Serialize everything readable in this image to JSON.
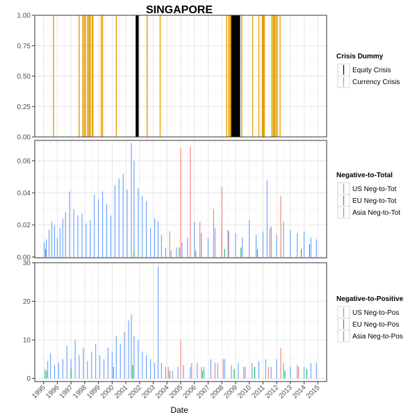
{
  "chart_data": {
    "title": "SINGAPORE",
    "xlabel": "Date",
    "x_ticks": [
      "1995",
      "1996",
      "1997",
      "1998",
      "1999",
      "2000",
      "2001",
      "2002",
      "2003",
      "2004",
      "2005",
      "2006",
      "2007",
      "2008",
      "2009",
      "2010",
      "2011",
      "2012",
      "2013",
      "2014",
      "2015"
    ],
    "xlim": [
      1995,
      2015
    ],
    "panels": [
      {
        "type": "bar",
        "ylim": [
          0,
          1
        ],
        "y_ticks": [
          "0.00",
          "0.25",
          "0.50",
          "0.75",
          "1.00"
        ],
        "legend": {
          "title": "Crisis Dummy",
          "entries": [
            {
              "label": "Equity Crisis",
              "color": "#000000"
            },
            {
              "label": "Currency Crisis",
              "color": "#E69F00"
            }
          ]
        },
        "series": [
          {
            "name": "Equity Crisis",
            "color": "#000000",
            "x": [
              2001.75,
              2001.78,
              2001.81,
              2001.84,
              2001.87,
              2001.9,
              2008.7,
              2008.75,
              2008.8,
              2008.85,
              2008.9,
              2008.95,
              2009.0,
              2009.05,
              2009.1,
              2009.15,
              2009.2,
              2009.25,
              2009.3
            ]
          },
          {
            "name": "Currency Crisis",
            "color": "#E69F00",
            "x": [
              1995.72,
              1997.6,
              1997.85,
              1997.95,
              1998.05,
              1998.2,
              1998.3,
              1998.35,
              1998.4,
              1998.55,
              1998.6,
              1999.2,
              1999.3,
              2000.3,
              2002.55,
              2003.5,
              2008.35,
              2008.5,
              2008.6,
              2008.65,
              2009.45,
              2010.25,
              2010.7,
              2010.95,
              2011.0,
              2011.05,
              2011.1,
              2011.65,
              2011.75,
              2011.8,
              2011.85,
              2011.95,
              2012.05,
              2012.25
            ]
          }
        ]
      },
      {
        "type": "bar",
        "ylim": [
          -0.0005,
          0.0728
        ],
        "y_ticks": [
          "0.00",
          "0.02",
          "0.04",
          "0.06"
        ],
        "legend": {
          "title": "Negative-to-Total",
          "entries": [
            {
              "label": "US Neg-to-Tot",
              "color": "#F8766D"
            },
            {
              "label": "EU Neg-to-Tot",
              "color": "#00BA38"
            },
            {
              "label": "Asia Neg-to-Tot",
              "color": "#619CFF"
            }
          ]
        },
        "series": [
          {
            "name": "Asia Neg-to-Tot",
            "color": "#619CFF",
            "x": [
              1995.05,
              1995.2,
              1995.4,
              1995.6,
              1995.8,
              1996.0,
              1996.2,
              1996.4,
              1996.6,
              1996.9,
              1997.2,
              1997.5,
              1997.8,
              1998.1,
              1998.4,
              1998.7,
              1999.0,
              1999.3,
              1999.6,
              1999.9,
              2000.2,
              2000.5,
              2000.8,
              2001.1,
              2001.4,
              2001.6,
              2001.9,
              2002.2,
              2002.5,
              2002.8,
              2003.1,
              2003.35,
              2003.6,
              2003.9,
              2004.3,
              2004.7,
              2005.1,
              2005.5,
              2006.0,
              2006.5,
              2007.0,
              2007.5,
              2008.0,
              2008.5,
              2009.0,
              2009.5,
              2010.0,
              2010.5,
              2011.0,
              2011.3,
              2011.6,
              2012.0,
              2012.5,
              2013.0,
              2013.5,
              2014.0,
              2014.5,
              2014.9
            ],
            "values": [
              0.009,
              0.011,
              0.017,
              0.022,
              0.02,
              0.012,
              0.018,
              0.024,
              0.028,
              0.041,
              0.03,
              0.026,
              0.027,
              0.021,
              0.023,
              0.039,
              0.036,
              0.041,
              0.033,
              0.026,
              0.045,
              0.049,
              0.052,
              0.042,
              0.071,
              0.06,
              0.043,
              0.038,
              0.035,
              0.018,
              0.024,
              0.022,
              0.014,
              0.006,
              0.004,
              0.006,
              0.009,
              0.012,
              0.022,
              0.015,
              0.012,
              0.018,
              0.019,
              0.016,
              0.015,
              0.012,
              0.023,
              0.014,
              0.016,
              0.048,
              0.019,
              0.014,
              0.022,
              0.017,
              0.015,
              0.016,
              0.012,
              0.011
            ]
          },
          {
            "name": "EU Neg-to-Tot",
            "color": "#00BA38",
            "x": [
              1995.15,
              2001.6,
              2004.9,
              2006.1,
              2008.2,
              2009.4,
              2010.6,
              2012.3,
              2013.8,
              2014.4
            ],
            "values": [
              0.005,
              0.004,
              0.006,
              0.004,
              0.005,
              0.006,
              0.005,
              0.007,
              0.005,
              0.008
            ]
          },
          {
            "name": "US Neg-to-Tot",
            "color": "#F8766D",
            "x": [
              2004.2,
              2005.0,
              2005.7,
              2006.4,
              2007.4,
              2008.0,
              2008.45,
              2011.5,
              2012.3
            ],
            "values": [
              0.016,
              0.068,
              0.069,
              0.022,
              0.03,
              0.044,
              0.017,
              0.018,
              0.038
            ]
          }
        ]
      },
      {
        "type": "bar",
        "ylim": [
          -0.8,
          30
        ],
        "y_ticks": [
          "0",
          "10",
          "20",
          "30"
        ],
        "legend": {
          "title": "Negative-to-Positive",
          "entries": [
            {
              "label": "US Neg-to-Pos",
              "color": "#F8766D"
            },
            {
              "label": "EU Neg-to-Pos",
              "color": "#00BA38"
            },
            {
              "label": "Asia Neg-to-Pos",
              "color": "#619CFF"
            }
          ]
        },
        "series": [
          {
            "name": "Asia Neg-to-Pos",
            "color": "#619CFF",
            "x": [
              1995.1,
              1995.3,
              1995.5,
              1995.8,
              1996.1,
              1996.4,
              1996.7,
              1997.0,
              1997.3,
              1997.6,
              1997.9,
              1998.2,
              1998.5,
              1998.8,
              1999.1,
              1999.4,
              1999.7,
              2000.0,
              2000.3,
              2000.6,
              2000.9,
              2001.2,
              2001.4,
              2001.6,
              2001.9,
              2002.2,
              2002.5,
              2002.8,
              2003.1,
              2003.35,
              2003.6,
              2003.9,
              2004.4,
              2004.8,
              2005.2,
              2005.7,
              2006.2,
              2006.7,
              2007.2,
              2007.7,
              2008.2,
              2008.7,
              2009.2,
              2009.7,
              2010.2,
              2010.7,
              2011.2,
              2011.6,
              2012.0,
              2012.5,
              2013.0,
              2013.5,
              2014.0,
              2014.5,
              2014.9
            ],
            "values": [
              2.5,
              4.5,
              6.5,
              3.5,
              4,
              5,
              8.5,
              5,
              10,
              6,
              8,
              4.5,
              7,
              9,
              6,
              5,
              8,
              7,
              11,
              9,
              12,
              15,
              16.5,
              11,
              10,
              7,
              6,
              5,
              4,
              29,
              4,
              3,
              2,
              3,
              3.5,
              3,
              4,
              3,
              5,
              4,
              5,
              3.5,
              4,
              3,
              4,
              4.5,
              5,
              3,
              5,
              4,
              3,
              3.5,
              3,
              4,
              4
            ]
          },
          {
            "name": "EU Neg-to-Pos",
            "color": "#00BA38",
            "x": [
              1995.2,
              1997.0,
              2000.1,
              2001.5,
              2004.2,
              2006.6,
              2008.9,
              2010.4,
              2012.6,
              2014.2
            ],
            "values": [
              2,
              2.5,
              3,
              3.5,
              2,
              2,
              2.5,
              3,
              2,
              2.5
            ]
          },
          {
            "name": "US Neg-to-Pos",
            "color": "#F8766D",
            "x": [
              2004.1,
              2005.0,
              2005.8,
              2006.5,
              2007.5,
              2008.1,
              2009.6,
              2011.4,
              2012.3,
              2013.6
            ],
            "values": [
              3,
              9.8,
              4,
              3,
              4,
              5,
              3,
              3,
              8,
              3
            ]
          }
        ]
      }
    ]
  }
}
